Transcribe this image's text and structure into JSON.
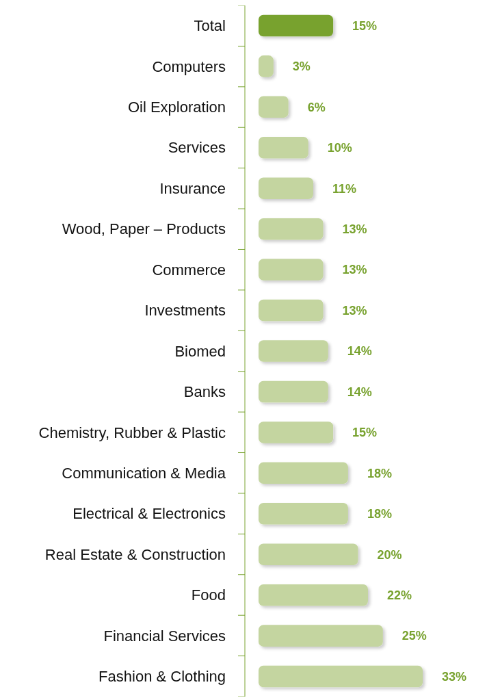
{
  "chart_data": {
    "type": "bar",
    "orientation": "horizontal",
    "categories": [
      "Total",
      "Computers",
      "Oil Exploration",
      "Services",
      "Insurance",
      "Wood, Paper – Products",
      "Commerce",
      "Investments",
      "Biomed",
      "Banks",
      "Chemistry, Rubber & Plastic",
      "Communication & Media",
      "Electrical & Electronics",
      "Real Estate & Construction",
      "Food",
      "Financial Services",
      "Fashion & Clothing"
    ],
    "values": [
      15,
      3,
      6,
      10,
      11,
      13,
      13,
      13,
      14,
      14,
      15,
      18,
      18,
      20,
      22,
      25,
      33
    ],
    "colors": [
      "#78a22f",
      "#c4d5a0",
      "#c4d5a0",
      "#c4d5a0",
      "#c4d5a0",
      "#c4d5a0",
      "#c4d5a0",
      "#c4d5a0",
      "#c4d5a0",
      "#c4d5a0",
      "#c4d5a0",
      "#c4d5a0",
      "#c4d5a0",
      "#c4d5a0",
      "#c4d5a0",
      "#c4d5a0",
      "#c4d5a0"
    ],
    "value_labels": [
      "15%",
      "3%",
      "6%",
      "10%",
      "11%",
      "13%",
      "13%",
      "13%",
      "14%",
      "14%",
      "15%",
      "18%",
      "18%",
      "20%",
      "22%",
      "25%",
      "33%"
    ]
  }
}
